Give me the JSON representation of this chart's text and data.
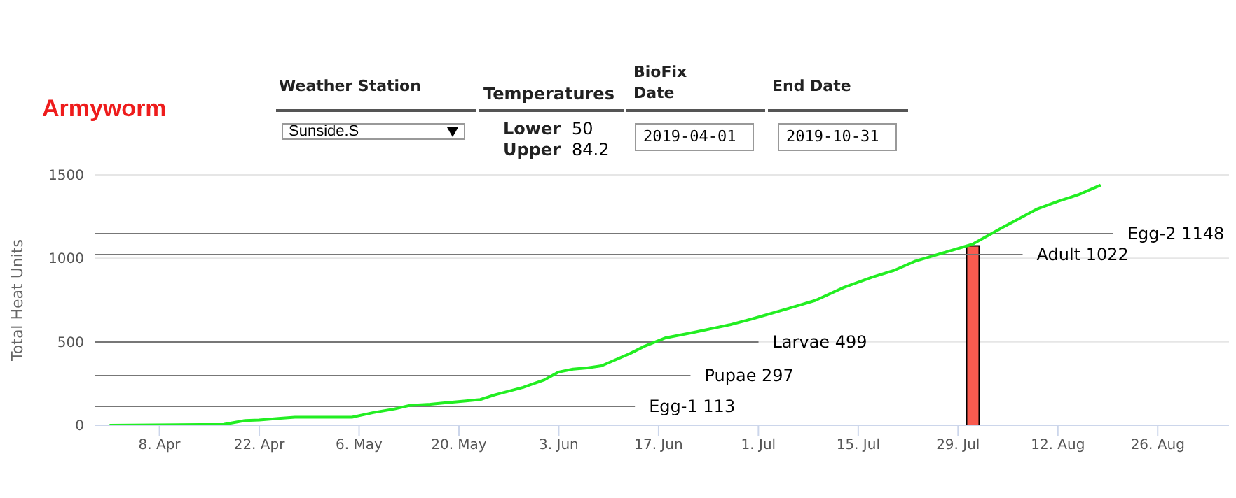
{
  "chart_data": {
    "type": "line",
    "title": "Armyworm",
    "ylabel": "Total Heat Units",
    "annotations": [
      "Weather Station",
      "Sunside.S",
      "Temperatures",
      "Lower",
      "50",
      "Upper",
      "84.2",
      "BioFix Date",
      "2019-04-01",
      "End Date",
      "2019-10-31"
    ],
    "series": [
      {
        "color": "#22ee22",
        "x": [
          "2019-04-01",
          "2019-04-17",
          "2019-04-20",
          "2019-04-22",
          "2019-04-25",
          "2019-04-27",
          "2019-05-05",
          "2019-05-08",
          "2019-05-11",
          "2019-05-13",
          "2019-05-16",
          "2019-05-18",
          "2019-05-21",
          "2019-05-23",
          "2019-05-25",
          "2019-05-29",
          "2019-06-01",
          "2019-06-03",
          "2019-06-05",
          "2019-06-07",
          "2019-06-09",
          "2019-06-13",
          "2019-06-15",
          "2019-06-18",
          "2019-06-22",
          "2019-06-27",
          "2019-06-30",
          "2019-07-05",
          "2019-07-09",
          "2019-07-13",
          "2019-07-17",
          "2019-07-20",
          "2019-07-23",
          "2019-07-31",
          "2019-08-04",
          "2019-08-09",
          "2019-08-12",
          "2019-08-15",
          "2019-08-18"
        ],
        "values": [
          0,
          5,
          28,
          31,
          42,
          48,
          48,
          76,
          98,
          118,
          126,
          134,
          146,
          154,
          182,
          227,
          272,
          319,
          336,
          344,
          356,
          430,
          473,
          524,
          557,
          602,
          636,
          697,
          748,
          826,
          888,
          927,
          983,
          1084,
          1179,
          1294,
          1341,
          1383,
          1439
        ]
      },
      {
        "type": "bar",
        "color": "#f95b4f",
        "x": [
          "2019-07-31"
        ],
        "values": [
          1075
        ]
      }
    ],
    "xlim": [
      "2019-03-30",
      "2019-09-05"
    ],
    "xticks": [
      {
        "value": "2019-04-08",
        "label": "8. Apr"
      },
      {
        "value": "2019-04-22",
        "label": "22. Apr"
      },
      {
        "value": "2019-05-06",
        "label": "6. May"
      },
      {
        "value": "2019-05-20",
        "label": "20. May"
      },
      {
        "value": "2019-06-03",
        "label": "3. Jun"
      },
      {
        "value": "2019-06-17",
        "label": "17. Jun"
      },
      {
        "value": "2019-07-01",
        "label": "1. Jul"
      },
      {
        "value": "2019-07-15",
        "label": "15. Jul"
      },
      {
        "value": "2019-07-29",
        "label": "29. Jul"
      },
      {
        "value": "2019-08-12",
        "label": "12. Aug"
      },
      {
        "value": "2019-08-26",
        "label": "26. Aug"
      }
    ],
    "ylim": [
      0,
      1500
    ],
    "yticks": [
      0,
      500,
      1000,
      1500
    ],
    "grid": "y",
    "legend": false,
    "marker": "none",
    "line_style": "solid",
    "ref_lines": [
      {
        "axis": "y",
        "value": 113,
        "label": "Egg-1 113",
        "color": "#777777"
      },
      {
        "axis": "y",
        "value": 297,
        "label": "Pupae 297",
        "color": "#777777"
      },
      {
        "axis": "y",
        "value": 499,
        "label": "Larvae 499",
        "color": "#777777"
      },
      {
        "axis": "y",
        "value": 1022,
        "label": "Adult 1022",
        "color": "#777777"
      },
      {
        "axis": "y",
        "value": 1148,
        "label": "Egg-2 1148",
        "color": "#777777"
      }
    ]
  }
}
